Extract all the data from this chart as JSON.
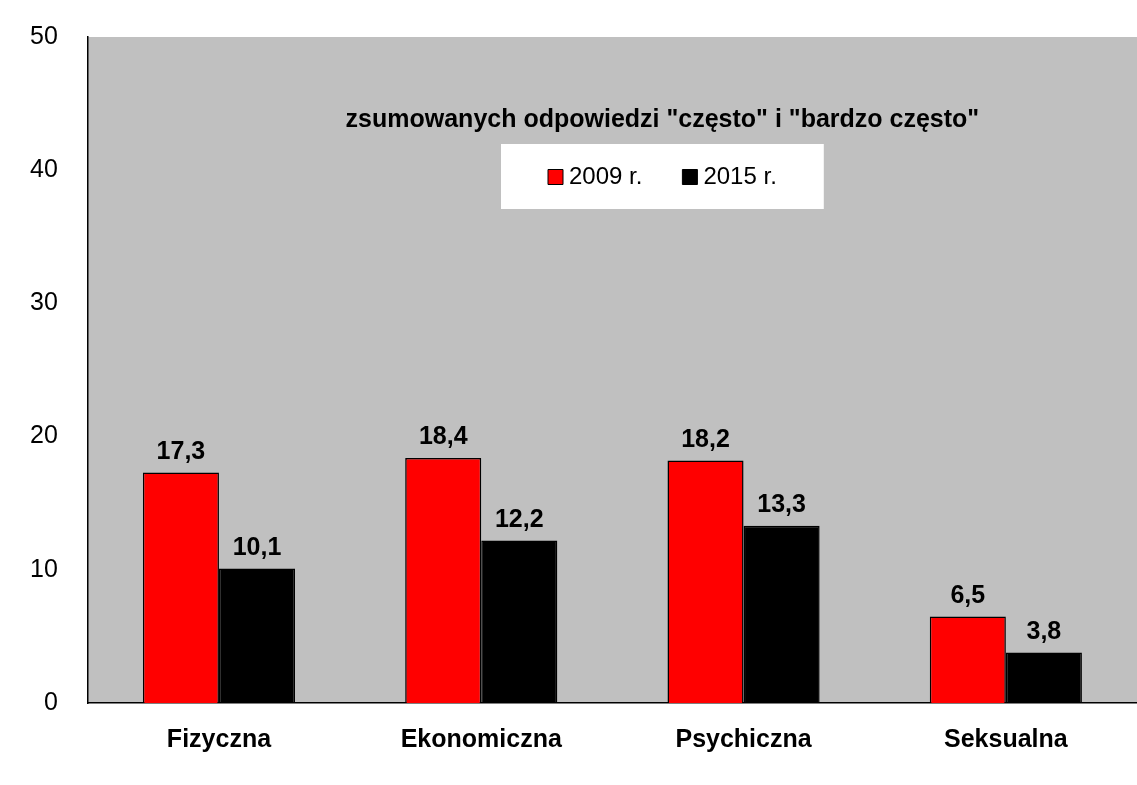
{
  "chart_data": {
    "type": "bar",
    "title": "zsumowanych odpowiedzi \"często\" i \"bardzo często\"",
    "categories": [
      "Fizyczna",
      "Ekonomiczna",
      "Psychiczna",
      "Seksualna"
    ],
    "series": [
      {
        "name": "2009 r.",
        "color": "#ff0000",
        "values": [
          17.3,
          18.4,
          18.2,
          6.5
        ],
        "value_labels": [
          "17,3",
          "18,4",
          "18,2",
          "6,5"
        ]
      },
      {
        "name": "2015 r.",
        "color": "#000000",
        "values": [
          10.1,
          12.2,
          13.3,
          3.8
        ],
        "value_labels": [
          "10,1",
          "12,2",
          "13,3",
          "3,8"
        ]
      }
    ],
    "ylim": [
      0,
      50
    ],
    "yticks": [
      0,
      10,
      20,
      30,
      40,
      50
    ],
    "grid": false,
    "legend": "top"
  }
}
